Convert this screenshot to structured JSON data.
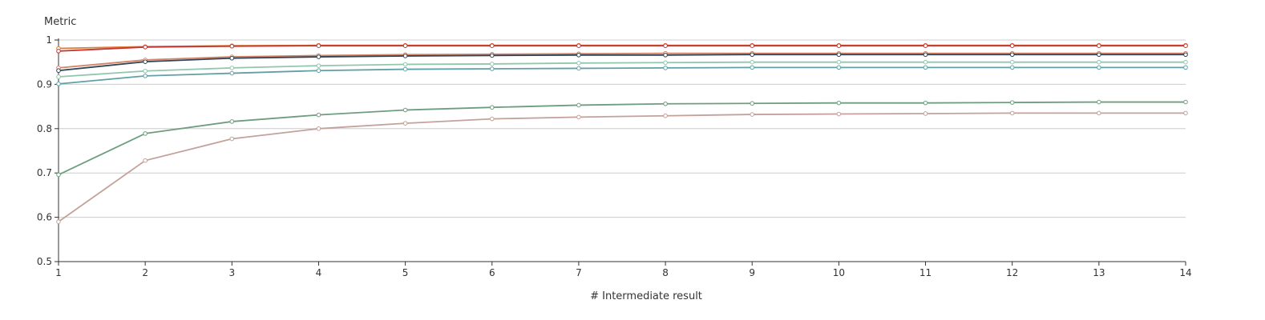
{
  "chart_data": {
    "type": "line",
    "xlabel": "# Intermediate result",
    "ylabel": "Metric",
    "x": [
      1,
      2,
      3,
      4,
      5,
      6,
      7,
      8,
      9,
      10,
      11,
      12,
      13,
      14
    ],
    "xlim": [
      1,
      14
    ],
    "ylim": [
      0.5,
      1
    ],
    "yticks": [
      0.5,
      0.6,
      0.7,
      0.8,
      0.9,
      1
    ],
    "ytick_labels": [
      "0.5",
      "0.6",
      "0.7",
      "0.8",
      "0.9",
      "1"
    ],
    "grid": true,
    "series": [
      {
        "color": "#e07b39",
        "values": [
          0.981,
          0.985,
          0.987,
          0.988,
          0.988,
          0.988,
          0.988,
          0.988,
          0.988,
          0.988,
          0.988,
          0.988,
          0.988,
          0.988
        ]
      },
      {
        "color": "#c23531",
        "values": [
          0.975,
          0.984,
          0.986,
          0.987,
          0.987,
          0.987,
          0.987,
          0.987,
          0.987,
          0.987,
          0.987,
          0.987,
          0.987,
          0.987
        ]
      },
      {
        "color": "#d48265",
        "values": [
          0.937,
          0.955,
          0.962,
          0.965,
          0.967,
          0.968,
          0.969,
          0.97,
          0.97,
          0.97,
          0.97,
          0.97,
          0.97,
          0.97
        ]
      },
      {
        "color": "#2f4554",
        "values": [
          0.931,
          0.951,
          0.959,
          0.962,
          0.964,
          0.965,
          0.966,
          0.966,
          0.967,
          0.967,
          0.967,
          0.967,
          0.967,
          0.967
        ]
      },
      {
        "color": "#91c7ae",
        "values": [
          0.917,
          0.93,
          0.937,
          0.942,
          0.945,
          0.946,
          0.948,
          0.949,
          0.95,
          0.95,
          0.95,
          0.95,
          0.95,
          0.95
        ]
      },
      {
        "color": "#61a0a8",
        "values": [
          0.901,
          0.919,
          0.925,
          0.931,
          0.934,
          0.935,
          0.936,
          0.937,
          0.938,
          0.938,
          0.938,
          0.938,
          0.938,
          0.938
        ]
      },
      {
        "color": "#6e9e7d",
        "values": [
          0.696,
          0.789,
          0.816,
          0.831,
          0.842,
          0.848,
          0.853,
          0.856,
          0.857,
          0.858,
          0.858,
          0.859,
          0.86,
          0.86
        ]
      },
      {
        "color": "#c4a19a",
        "values": [
          0.59,
          0.728,
          0.777,
          0.8,
          0.812,
          0.822,
          0.826,
          0.829,
          0.832,
          0.833,
          0.834,
          0.835,
          0.835,
          0.835
        ]
      }
    ]
  }
}
